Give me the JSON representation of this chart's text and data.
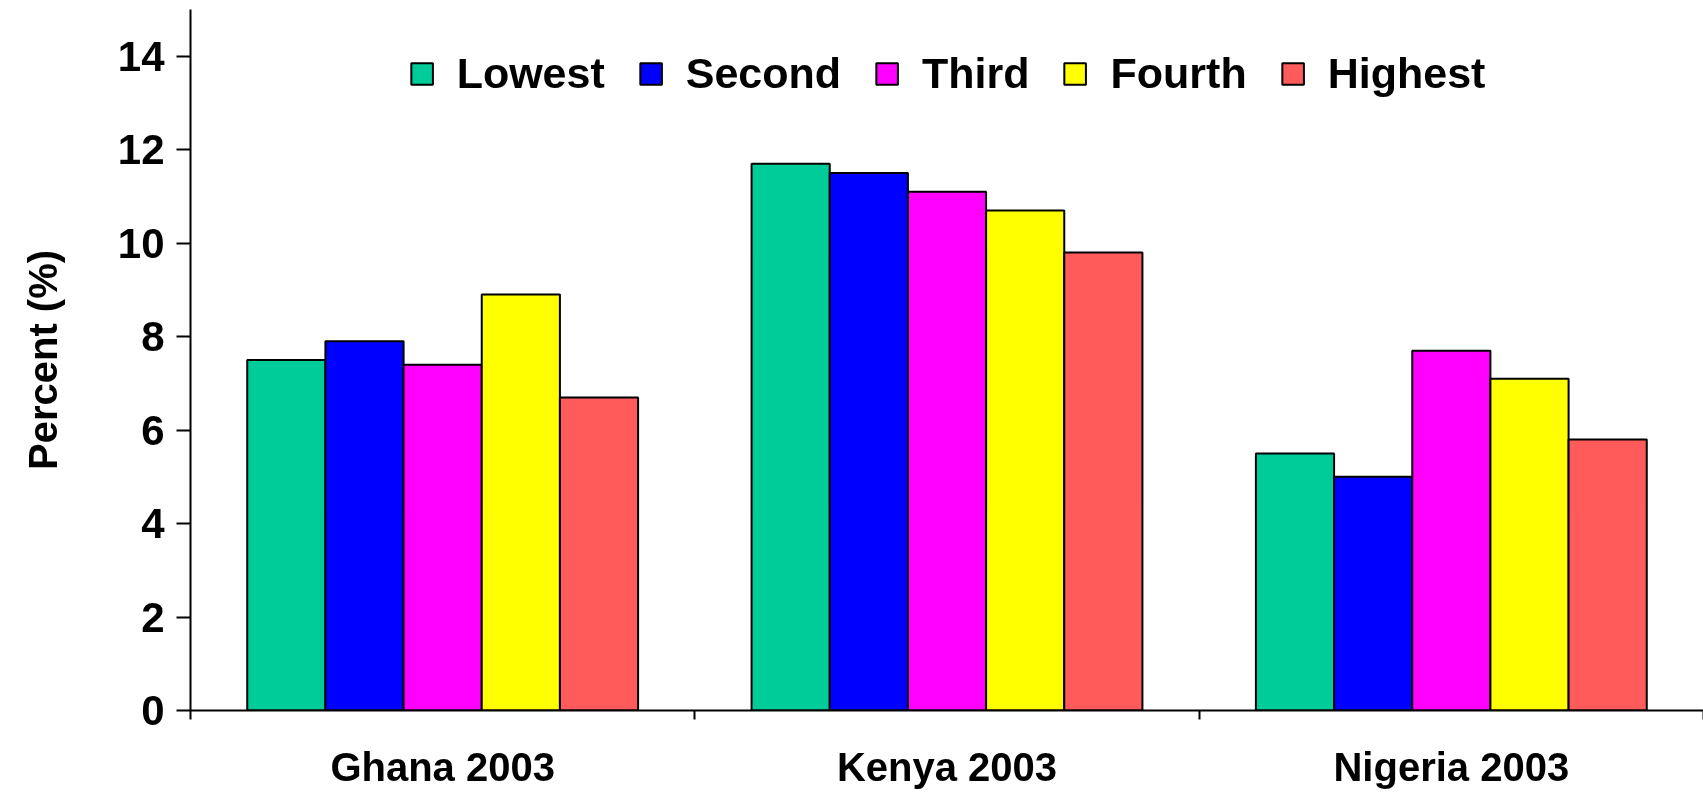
{
  "chart_data": {
    "type": "bar",
    "ylabel": "Percent (%)",
    "categories": [
      "Ghana 2003",
      "Kenya 2003",
      "Nigeria 2003"
    ],
    "series": [
      {
        "name": "Lowest",
        "color": "#00cc99",
        "values": [
          7.5,
          11.7,
          5.5
        ]
      },
      {
        "name": "Second",
        "color": "#0000ff",
        "values": [
          7.9,
          11.5,
          5.0
        ]
      },
      {
        "name": "Third",
        "color": "#ff00ff",
        "values": [
          7.4,
          11.1,
          7.7
        ]
      },
      {
        "name": "Fourth",
        "color": "#ffff00",
        "values": [
          8.9,
          10.7,
          7.1
        ]
      },
      {
        "name": "Highest",
        "color": "#ff5b5b",
        "values": [
          6.7,
          9.8,
          5.8
        ]
      }
    ],
    "ylim": [
      0,
      15
    ],
    "yticks": [
      0,
      2,
      4,
      6,
      8,
      10,
      12,
      14
    ],
    "legend": "top"
  }
}
